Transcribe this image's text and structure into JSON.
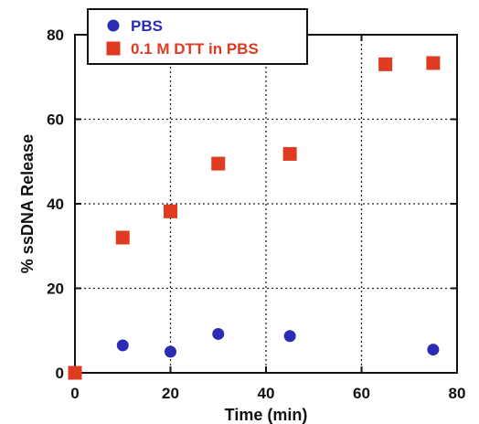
{
  "chart_data": {
    "type": "scatter",
    "xlabel": "Time (min)",
    "ylabel": "% ssDNA Release",
    "xlim": [
      0,
      80
    ],
    "ylim": [
      0,
      80
    ],
    "xticks": [
      0,
      20,
      40,
      60,
      80
    ],
    "yticks": [
      0,
      20,
      40,
      60,
      80
    ],
    "grid": true,
    "legend_position": "top-left",
    "series": [
      {
        "name": "PBS",
        "marker": "circle",
        "color": "#2b2bb3",
        "points": [
          [
            0,
            0
          ],
          [
            10,
            6.5
          ],
          [
            20,
            5
          ],
          [
            30,
            9.2
          ],
          [
            45,
            8.7
          ],
          [
            75,
            5.5
          ]
        ]
      },
      {
        "name": "0.1 M DTT in PBS",
        "marker": "square",
        "color": "#e03a20",
        "points": [
          [
            0,
            0
          ],
          [
            10,
            32
          ],
          [
            20,
            38.2
          ],
          [
            30,
            49.5
          ],
          [
            45,
            51.8
          ],
          [
            65,
            73
          ],
          [
            75,
            73.3
          ]
        ]
      }
    ]
  }
}
